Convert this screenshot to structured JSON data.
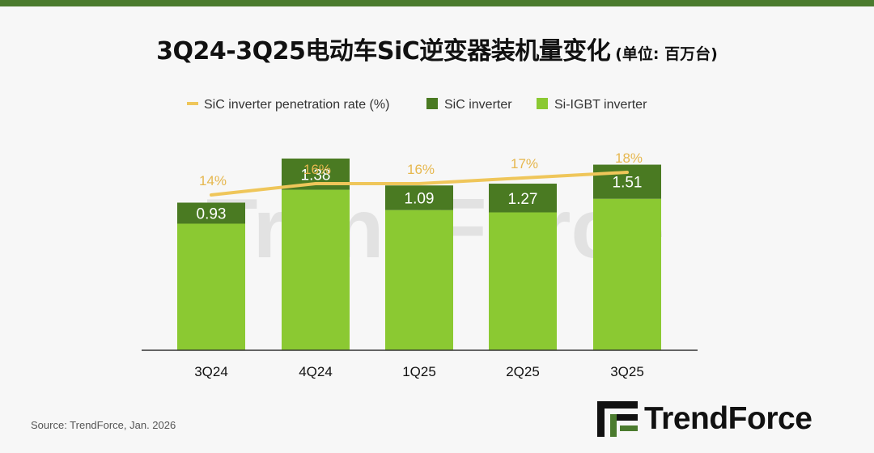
{
  "page": {
    "title": "3Q24-3Q25电动车SiC逆变器装机量变化",
    "unit": "(单位: 百万台)",
    "source": "Source: TrendForce, Jan. 2026",
    "brand": "TrendForce",
    "watermark": "TrendForce"
  },
  "colors": {
    "igbt": "#8bc932",
    "sic": "#4a7a22",
    "line": "#efc65a",
    "line_label": "#e6b74e",
    "bar_label": "#ffffff",
    "axis": "#333333",
    "brand_accent": "#4b7b2e"
  },
  "chart_data": {
    "type": "bar",
    "stacked": true,
    "categories": [
      "3Q24",
      "4Q24",
      "1Q25",
      "2Q25",
      "3Q25"
    ],
    "series": [
      {
        "name": "Si-IGBT inverter",
        "values": [
          5.6,
          7.1,
          6.2,
          6.1,
          6.7
        ]
      },
      {
        "name": "SiC inverter",
        "values": [
          0.93,
          1.38,
          1.09,
          1.27,
          1.51
        ],
        "labels": [
          "0.93",
          "1.38",
          "1.09",
          "1.27",
          "1.51"
        ]
      }
    ],
    "line_series": {
      "name": "SiC inverter penetration rate (%)",
      "values": [
        14,
        16,
        16,
        17,
        18
      ],
      "labels": [
        "14%",
        "16%",
        "16%",
        "17%",
        "18%"
      ]
    },
    "legend": [
      {
        "name": "SiC inverter penetration rate (%)",
        "kind": "line"
      },
      {
        "name": "SiC inverter",
        "kind": "box"
      },
      {
        "name": "Si-IGBT inverter",
        "kind": "box"
      }
    ],
    "legend_position": "top",
    "grid": false
  }
}
